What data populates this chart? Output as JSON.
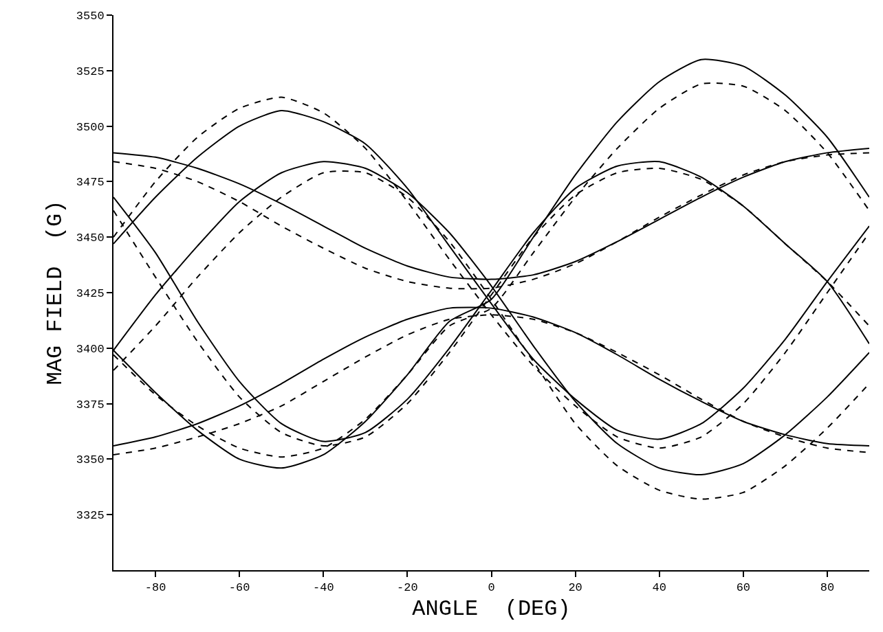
{
  "chart_data": {
    "type": "line",
    "xlabel": "ANGLE  (DEG)",
    "ylabel": "MAG FIELD  (G)",
    "x": [
      -90,
      -80,
      -70,
      -60,
      -50,
      -40,
      -30,
      -20,
      -10,
      0,
      10,
      20,
      30,
      40,
      50,
      60,
      70,
      80,
      90
    ],
    "xlim": [
      -90,
      90
    ],
    "xticks": [
      -80,
      -60,
      -40,
      -20,
      0,
      20,
      40,
      60,
      80
    ],
    "ylim": [
      3300,
      3550
    ],
    "yticks": [
      3325,
      3350,
      3375,
      3400,
      3425,
      3450,
      3475,
      3500,
      3525,
      3550
    ],
    "marker": "none",
    "series": [
      {
        "color": "#000000",
        "line_style": "solid",
        "values": [
          3447,
          3468,
          3486,
          3500,
          3507,
          3502,
          3492,
          3472,
          3446,
          3420,
          3395,
          3377,
          3363,
          3359,
          3366,
          3382,
          3404,
          3430,
          3455
        ]
      },
      {
        "color": "#000000",
        "line_style": "solid",
        "values": [
          3399,
          3424,
          3446,
          3466,
          3479,
          3484,
          3481,
          3470,
          3452,
          3428,
          3401,
          3376,
          3357,
          3346,
          3343,
          3348,
          3361,
          3378,
          3398
        ]
      },
      {
        "color": "#000000",
        "line_style": "solid",
        "values": [
          3399,
          3380,
          3363,
          3350,
          3346,
          3352,
          3367,
          3388,
          3412,
          3422,
          3450,
          3478,
          3502,
          3520,
          3530,
          3527,
          3514,
          3495,
          3468
        ]
      },
      {
        "color": "#000000",
        "line_style": "solid",
        "values": [
          3468,
          3443,
          3412,
          3385,
          3366,
          3358,
          3362,
          3377,
          3400,
          3426,
          3452,
          3472,
          3482,
          3484,
          3477,
          3464,
          3447,
          3430,
          3402
        ]
      },
      {
        "color": "#000000",
        "line_style": "solid",
        "values": [
          3488,
          3486,
          3481,
          3474,
          3465,
          3455,
          3445,
          3437,
          3432,
          3431,
          3433,
          3439,
          3448,
          3458,
          3468,
          3477,
          3484,
          3488,
          3490
        ]
      },
      {
        "color": "#000000",
        "line_style": "solid",
        "values": [
          3356,
          3360,
          3366,
          3374,
          3384,
          3395,
          3405,
          3413,
          3418,
          3418,
          3414,
          3407,
          3397,
          3386,
          3376,
          3367,
          3361,
          3357,
          3356
        ]
      },
      {
        "color": "#000000",
        "line_style": "dashed",
        "values": [
          3450,
          3475,
          3495,
          3508,
          3513,
          3506,
          3490,
          3466,
          3440,
          3415,
          3392,
          3374,
          3360,
          3355,
          3360,
          3375,
          3398,
          3425,
          3452
        ]
      },
      {
        "color": "#000000",
        "line_style": "dashed",
        "values": [
          3390,
          3410,
          3432,
          3452,
          3468,
          3479,
          3479,
          3468,
          3448,
          3422,
          3394,
          3366,
          3347,
          3336,
          3332,
          3335,
          3347,
          3364,
          3384
        ]
      },
      {
        "color": "#000000",
        "line_style": "dashed",
        "values": [
          3397,
          3379,
          3365,
          3355,
          3351,
          3355,
          3368,
          3388,
          3410,
          3418,
          3443,
          3468,
          3490,
          3508,
          3519,
          3518,
          3507,
          3488,
          3462
        ]
      },
      {
        "color": "#000000",
        "line_style": "dashed",
        "values": [
          3462,
          3432,
          3403,
          3378,
          3362,
          3356,
          3360,
          3375,
          3398,
          3424,
          3450,
          3469,
          3479,
          3481,
          3476,
          3464,
          3447,
          3430,
          3410
        ]
      },
      {
        "color": "#000000",
        "line_style": "dashed",
        "values": [
          3484,
          3481,
          3475,
          3466,
          3455,
          3445,
          3436,
          3430,
          3427,
          3427,
          3431,
          3438,
          3448,
          3459,
          3469,
          3478,
          3484,
          3487,
          3488
        ]
      },
      {
        "color": "#000000",
        "line_style": "dashed",
        "values": [
          3352,
          3355,
          3360,
          3366,
          3374,
          3385,
          3396,
          3406,
          3413,
          3415,
          3413,
          3407,
          3398,
          3388,
          3377,
          3367,
          3360,
          3355,
          3353
        ]
      }
    ]
  }
}
